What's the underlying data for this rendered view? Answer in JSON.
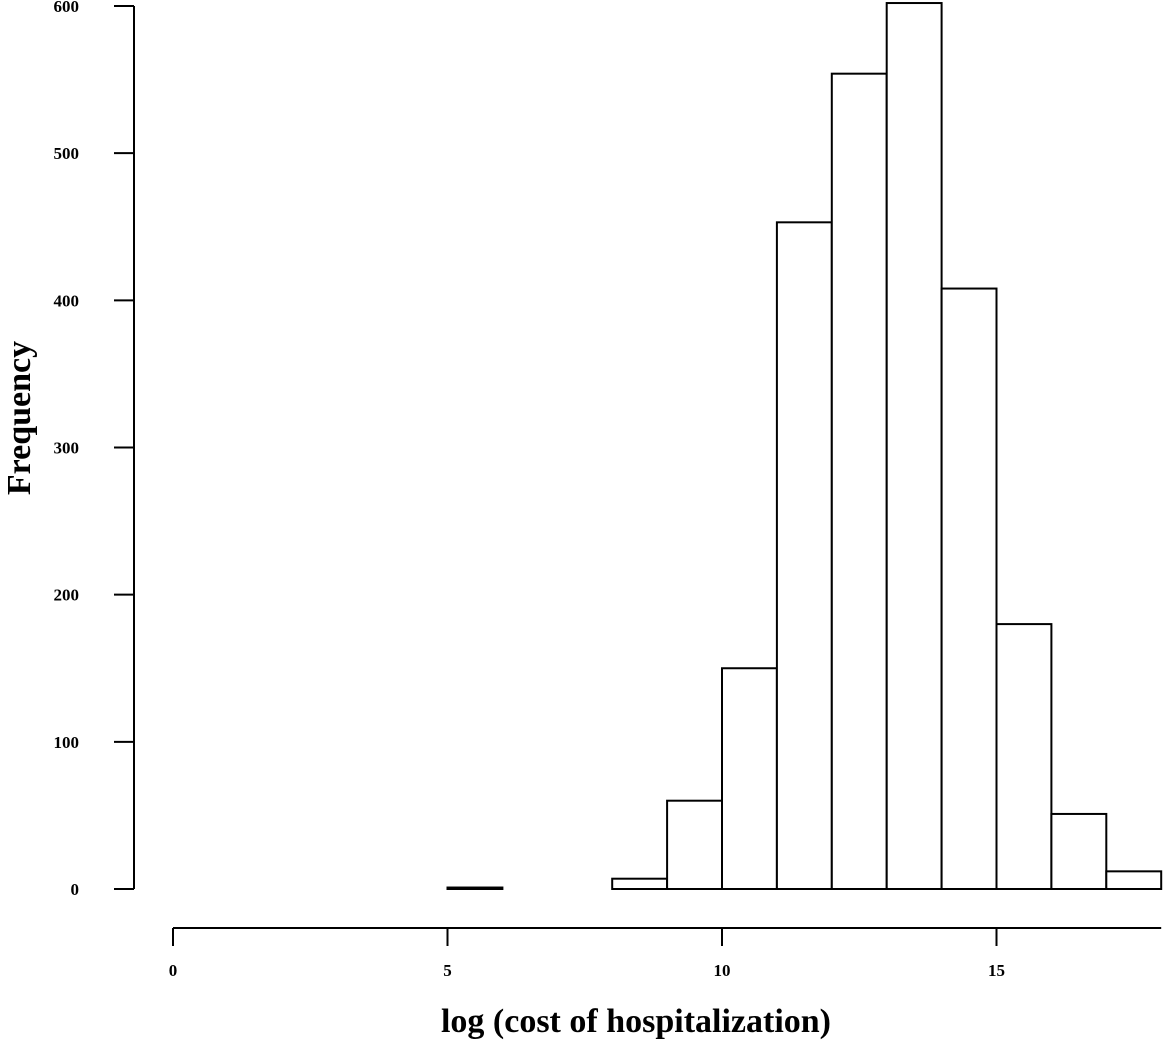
{
  "chart_data": {
    "type": "bar",
    "title": "",
    "xlabel": "log (cost of hospitalization)",
    "ylabel": "Frequency",
    "bin_edges": [
      0,
      1,
      2,
      3,
      4,
      5,
      6,
      7,
      8,
      9,
      10,
      11,
      12,
      13,
      14,
      15,
      16,
      17,
      18
    ],
    "values": [
      0,
      0,
      0,
      0,
      0,
      1,
      0,
      0,
      7,
      60,
      150,
      453,
      554,
      602,
      408,
      180,
      51,
      12
    ],
    "xlim": [
      0,
      18
    ],
    "ylim": [
      0,
      600
    ],
    "xticks": [
      "0",
      "5",
      "10",
      "15"
    ],
    "yticks": [
      "0",
      "100",
      "200",
      "300",
      "400",
      "500",
      "600"
    ],
    "grid": false,
    "legend": "none"
  }
}
